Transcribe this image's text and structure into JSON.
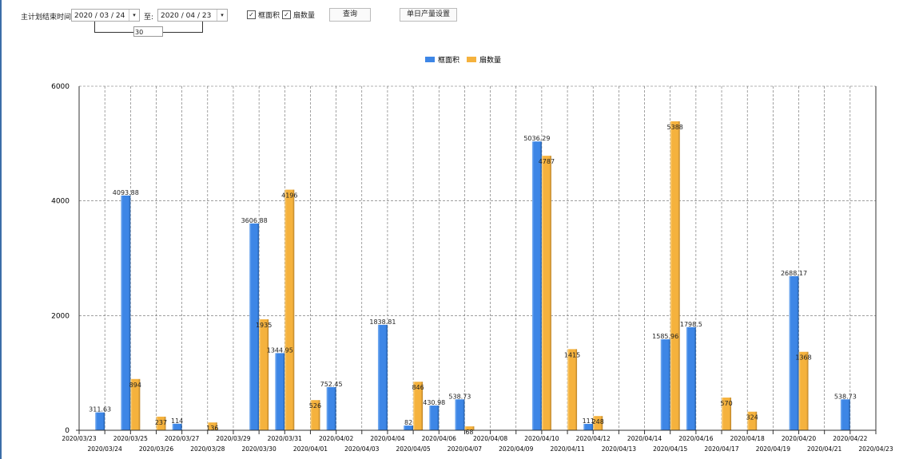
{
  "toolbar": {
    "label": "主计划结束时间:",
    "start_date": "2020 / 03 / 24",
    "to_label": "至:",
    "end_date": "2020 / 04 / 23",
    "days": "30",
    "checkbox_area": "框面积",
    "checkbox_qty": "扇数量",
    "query_button": "查询",
    "daily_output_button": "单日产量设置"
  },
  "colors": {
    "area": "#3d86e6",
    "qty": "#f5b23d"
  },
  "chart_data": {
    "type": "bar",
    "legend_position": "top-center",
    "grid": true,
    "ylim": [
      0,
      6000
    ],
    "yticks": [
      0,
      2000,
      4000,
      6000
    ],
    "categories": [
      "2020/03/23",
      "2020/03/24",
      "2020/03/25",
      "2020/03/26",
      "2020/03/27",
      "2020/03/28",
      "2020/03/29",
      "2020/03/30",
      "2020/03/31",
      "2020/04/01",
      "2020/04/02",
      "2020/04/03",
      "2020/04/04",
      "2020/04/05",
      "2020/04/06",
      "2020/04/07",
      "2020/04/08",
      "2020/04/09",
      "2020/04/10",
      "2020/04/11",
      "2020/04/12",
      "2020/04/13",
      "2020/04/14",
      "2020/04/15",
      "2020/04/16",
      "2020/04/17",
      "2020/04/18",
      "2020/04/19",
      "2020/04/20",
      "2020/04/21",
      "2020/04/22",
      "2020/04/23"
    ],
    "series": [
      {
        "name": "框面积",
        "values": [
          0,
          311.63,
          4093.88,
          0,
          114,
          0,
          0,
          3606.88,
          1344.95,
          0,
          752.45,
          0,
          1838.81,
          82,
          430.98,
          538.73,
          0,
          0,
          5036.29,
          0,
          111,
          0,
          0,
          1585.96,
          1798.5,
          0,
          0,
          0,
          2688.17,
          0,
          538.73,
          0
        ]
      },
      {
        "name": "扇数量",
        "values": [
          0,
          0,
          894,
          237,
          0,
          136,
          0,
          1935,
          4196,
          526,
          0,
          0,
          0,
          846,
          0,
          68,
          0,
          0,
          4787,
          1415,
          248,
          0,
          0,
          5388,
          0,
          570,
          324,
          0,
          1368,
          0,
          0,
          0
        ]
      }
    ]
  }
}
